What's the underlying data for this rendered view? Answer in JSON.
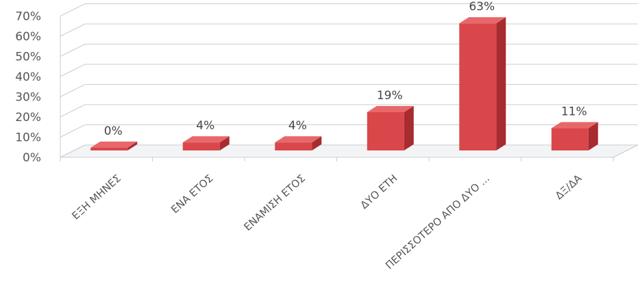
{
  "chart_data": {
    "type": "bar",
    "title": "",
    "xlabel": "",
    "ylabel": "",
    "categories": [
      "ΕΞΗ ΜΗΝΕΣ",
      "ΕΝΑ ΕΤΟΣ",
      "ΕΝΑΜΙΣΗ ΕΤΟΣ",
      "ΔΥΟ ΕΤΗ",
      "ΠΕΡΙΣΣΟΤΕΡΟ ΑΠΟ ΔΥΟ ...",
      "ΔΞ/ΔΑ"
    ],
    "values": [
      0,
      4,
      4,
      19,
      63,
      11
    ],
    "data_labels": [
      "0%",
      "4%",
      "4%",
      "19%",
      "63%",
      "11%"
    ],
    "y_ticks": [
      "0%",
      "10%",
      "20%",
      "30%",
      "40%",
      "50%",
      "60%",
      "70%"
    ],
    "ylim": [
      0,
      70
    ],
    "grid": true,
    "legend": "none",
    "three_d": true,
    "colors": {
      "bar_front": "#d9474a",
      "bar_side": "#a82b2f",
      "bar_top": "#e8686a",
      "grid": "#c9cdd3",
      "label_text": "#444444",
      "tick_text": "#555555"
    }
  }
}
